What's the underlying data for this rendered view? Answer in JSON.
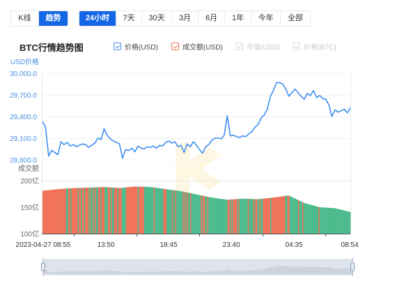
{
  "toolbar": {
    "view_tabs": [
      {
        "label": "K线",
        "active": false
      },
      {
        "label": "趋势",
        "active": true
      }
    ],
    "range_tabs": [
      {
        "label": "24小时",
        "active": true
      },
      {
        "label": "7天",
        "active": false
      },
      {
        "label": "30天",
        "active": false
      },
      {
        "label": "3月",
        "active": false
      },
      {
        "label": "6月",
        "active": false
      },
      {
        "label": "1年",
        "active": false
      },
      {
        "label": "今年",
        "active": false
      },
      {
        "label": "全部",
        "active": false
      }
    ]
  },
  "chart_title": "BTC行情趋势图",
  "legend": [
    {
      "label": "价格(USD)",
      "checked": true,
      "color": "#4a90e2"
    },
    {
      "label": "成交额(USD)",
      "checked": true,
      "color": "#f0735a"
    },
    {
      "label": "市值(USD)",
      "checked": false,
      "color": "#d0d0d0"
    },
    {
      "label": "价格(BTC)",
      "checked": false,
      "color": "#d0d0d0"
    }
  ],
  "colors": {
    "price_line": "#3d8ff0",
    "axis_label_price": "#4a90e2",
    "volume_up": "#f0735a",
    "volume_down": "#4dbb8e",
    "active_button": "#1366e6",
    "watermark": "#fdf6d8",
    "zoom_fill": "#dfe4ec"
  },
  "chart_data": {
    "type": "line",
    "title": "BTC行情趋势图",
    "xlabel": "",
    "x_ticks": [
      "2023-04-27 08:55",
      "13:50",
      "18:45",
      "23:40",
      "04:35",
      "08:54"
    ],
    "price_axis": {
      "label": "USD价格",
      "ticks": [
        "30,000.0",
        "29,700.0",
        "29,400.0",
        "29,100.0",
        "28,800.0"
      ],
      "ylim": [
        28800,
        30000
      ]
    },
    "volume_axis": {
      "label": "成交额",
      "ticks": [
        "200亿",
        "150亿",
        "100亿"
      ],
      "ylim": [
        100,
        200
      ],
      "unit": "亿"
    },
    "series": [
      {
        "name": "价格(USD)",
        "type": "line",
        "x_pct": [
          0,
          1,
          2,
          3,
          4,
          5,
          6,
          7,
          8,
          9,
          10,
          11,
          12,
          13,
          14,
          15,
          16,
          17,
          18,
          19,
          20,
          21,
          22,
          23,
          24,
          25,
          26,
          27,
          28,
          29,
          30,
          31,
          32,
          33,
          34,
          35,
          36,
          37,
          38,
          39,
          40,
          41,
          42,
          43,
          44,
          45,
          46,
          47,
          48,
          49,
          50,
          51,
          52,
          53,
          54,
          55,
          56,
          57,
          58,
          59,
          60,
          61,
          62,
          63,
          64,
          65,
          66,
          67,
          68,
          69,
          70,
          71,
          72,
          73,
          74,
          75,
          76,
          77,
          78,
          79,
          80,
          81,
          82,
          83,
          84,
          85,
          86,
          87,
          88,
          89,
          90,
          91,
          92,
          93,
          94,
          95,
          96,
          97,
          98,
          99,
          100
        ],
        "values": [
          29330,
          29250,
          28850,
          28930,
          28900,
          28870,
          29050,
          29010,
          29040,
          28990,
          29010,
          28980,
          29000,
          29020,
          29010,
          28970,
          29000,
          29030,
          29100,
          29080,
          29230,
          29140,
          29090,
          29060,
          29040,
          29020,
          28820,
          28940,
          28930,
          28960,
          28910,
          28990,
          28960,
          28950,
          28980,
          28970,
          28990,
          28960,
          29000,
          28990,
          29040,
          29060,
          29030,
          29050,
          28980,
          29000,
          28900,
          29020,
          28980,
          29050,
          29000,
          28940,
          28890,
          28980,
          29010,
          29070,
          29100,
          29100,
          29090,
          29140,
          29410,
          29130,
          29140,
          29120,
          29110,
          29130,
          29120,
          29160,
          29190,
          29250,
          29290,
          29380,
          29420,
          29500,
          29680,
          29760,
          29870,
          29870,
          29850,
          29780,
          29680,
          29730,
          29780,
          29730,
          29680,
          29640,
          29720,
          29690,
          29760,
          29660,
          29690,
          29650,
          29640,
          29560,
          29400,
          29490,
          29460,
          29480,
          29500,
          29450,
          29520
        ]
      },
      {
        "name": "成交额(USD)",
        "type": "bar",
        "unit": "亿",
        "x_pct": [
          0,
          5,
          10,
          15,
          20,
          25,
          30,
          35,
          40,
          45,
          50,
          55,
          60,
          65,
          70,
          75,
          80,
          85,
          90,
          95,
          100
        ],
        "values": [
          181,
          184,
          186,
          187,
          188,
          186,
          189,
          188,
          184,
          180,
          174,
          168,
          164,
          166,
          165,
          168,
          172,
          158,
          150,
          148,
          141
        ]
      }
    ],
    "watermark": "logo",
    "dataZoom": {
      "start_pct": 0,
      "end_pct": 100
    }
  }
}
